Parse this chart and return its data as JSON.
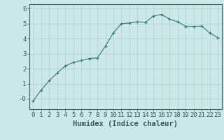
{
  "x": [
    0,
    1,
    2,
    3,
    4,
    5,
    6,
    7,
    8,
    9,
    10,
    11,
    12,
    13,
    14,
    15,
    16,
    17,
    18,
    19,
    20,
    21,
    22,
    23
  ],
  "y": [
    -0.15,
    0.58,
    1.2,
    1.72,
    2.18,
    2.42,
    2.55,
    2.68,
    2.72,
    3.5,
    4.4,
    5.0,
    5.05,
    5.12,
    5.1,
    5.52,
    5.62,
    5.3,
    5.13,
    4.82,
    4.82,
    4.85,
    4.38,
    4.08
  ],
  "line_color": "#2e7d6e",
  "marker": "+",
  "marker_size": 3,
  "bg_color": "#cce8e6",
  "grid_color": "#aed0cc",
  "axis_color": "#2e5f58",
  "tick_color": "#2e5f58",
  "xlabel": "Humidex (Indice chaleur)",
  "xlim": [
    -0.5,
    23.5
  ],
  "ylim": [
    -0.7,
    6.3
  ],
  "yticks": [
    0,
    1,
    2,
    3,
    4,
    5,
    6
  ],
  "ytick_labels": [
    "-0",
    "1",
    "2",
    "3",
    "4",
    "5",
    "6"
  ],
  "xticks": [
    0,
    1,
    2,
    3,
    4,
    5,
    6,
    7,
    8,
    9,
    10,
    11,
    12,
    13,
    14,
    15,
    16,
    17,
    18,
    19,
    20,
    21,
    22,
    23
  ],
  "font_size": 6.5,
  "xlabel_fontsize": 7.5
}
